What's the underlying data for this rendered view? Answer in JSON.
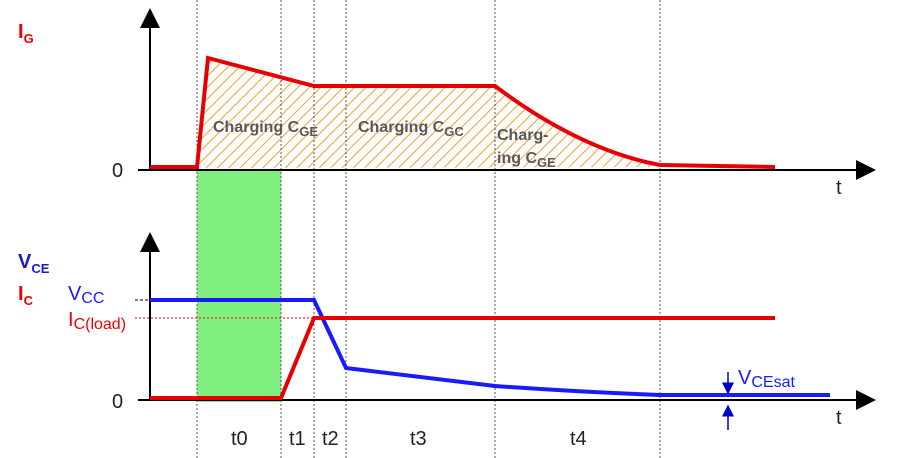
{
  "top_axis": {
    "label": {
      "main": "I",
      "sub": "G"
    },
    "zero": "0",
    "t": "t"
  },
  "phases": [
    {
      "main": "Charging C",
      "sub": "GE"
    },
    {
      "main": "Charging C",
      "sub": "GC"
    },
    {
      "line1": "Charg-",
      "main": "ing C",
      "sub": "GE"
    }
  ],
  "bottom_axis": {
    "label_v": {
      "main": "V",
      "sub": "CE"
    },
    "label_i": {
      "main": "I",
      "sub": "C"
    },
    "zero": "0",
    "t": "t"
  },
  "levels": {
    "vcc": {
      "main": "V",
      "sub": "CC"
    },
    "ic_load": {
      "main": "I",
      "sub": "C(load)"
    },
    "vcesat": {
      "main": "V",
      "sub": "CEsat"
    }
  },
  "intervals": [
    "t0",
    "t1",
    "t2",
    "t3",
    "t4"
  ]
}
